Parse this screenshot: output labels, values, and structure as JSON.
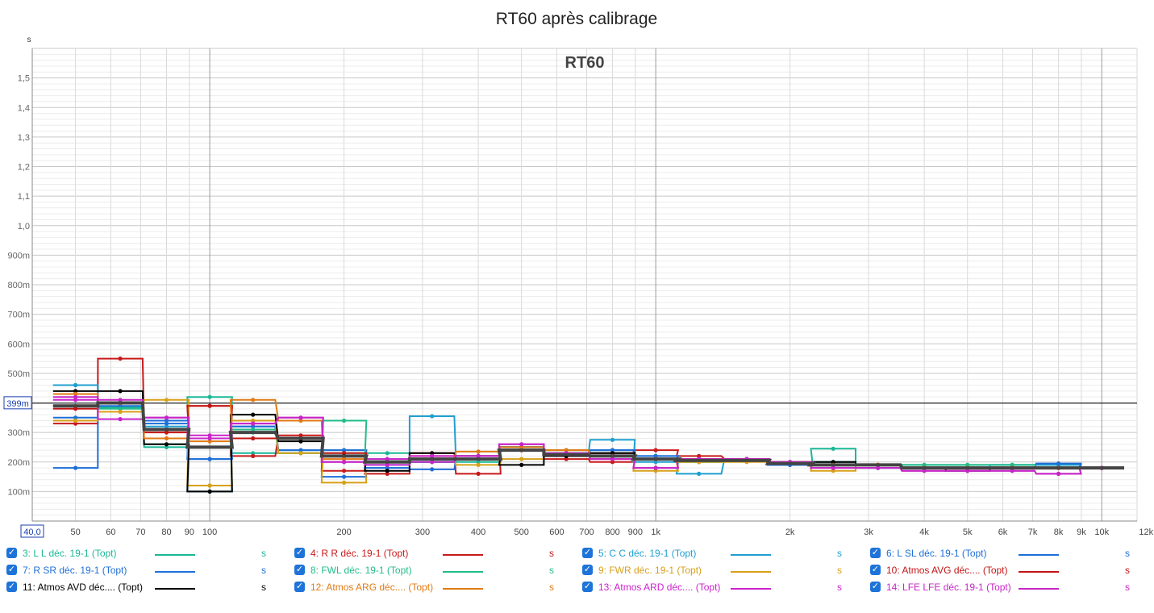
{
  "chart_data": {
    "type": "line",
    "title": "RT60 après calibrage",
    "watermark": "RT60",
    "y_unit": "s",
    "x_scale": "log",
    "xlim": [
      40,
      12000
    ],
    "ylim": [
      0,
      1.6
    ],
    "cursor": {
      "value": 0.399,
      "label": "399m"
    },
    "x_origin_label": "40,0",
    "y_ticks": [
      {
        "v": 0.1,
        "label": "100m"
      },
      {
        "v": 0.2,
        "label": "200m"
      },
      {
        "v": 0.3,
        "label": "300m"
      },
      {
        "v": 0.4,
        "label": ""
      },
      {
        "v": 0.5,
        "label": "500m"
      },
      {
        "v": 0.6,
        "label": "600m"
      },
      {
        "v": 0.7,
        "label": "700m"
      },
      {
        "v": 0.8,
        "label": "800m"
      },
      {
        "v": 0.9,
        "label": "900m"
      },
      {
        "v": 1.0,
        "label": "1,0"
      },
      {
        "v": 1.1,
        "label": "1,1"
      },
      {
        "v": 1.2,
        "label": "1,2"
      },
      {
        "v": 1.3,
        "label": "1,3"
      },
      {
        "v": 1.4,
        "label": "1,4"
      },
      {
        "v": 1.5,
        "label": "1,5"
      }
    ],
    "x_ticks": [
      {
        "v": 50,
        "label": "50"
      },
      {
        "v": 60,
        "label": "60"
      },
      {
        "v": 70,
        "label": "70"
      },
      {
        "v": 80,
        "label": "80"
      },
      {
        "v": 90,
        "label": "90"
      },
      {
        "v": 100,
        "label": "100"
      },
      {
        "v": 200,
        "label": "200"
      },
      {
        "v": 300,
        "label": "300"
      },
      {
        "v": 400,
        "label": "400"
      },
      {
        "v": 500,
        "label": "500"
      },
      {
        "v": 600,
        "label": "600"
      },
      {
        "v": 700,
        "label": "700"
      },
      {
        "v": 800,
        "label": "800"
      },
      {
        "v": 900,
        "label": "900"
      },
      {
        "v": 1000,
        "label": "1k"
      },
      {
        "v": 2000,
        "label": "2k"
      },
      {
        "v": 3000,
        "label": "3k"
      },
      {
        "v": 4000,
        "label": "4k"
      },
      {
        "v": 5000,
        "label": "5k"
      },
      {
        "v": 6000,
        "label": "6k"
      },
      {
        "v": 7000,
        "label": "7k"
      },
      {
        "v": 8000,
        "label": "8k"
      },
      {
        "v": 9000,
        "label": "9k"
      },
      {
        "v": 10000,
        "label": "10k"
      },
      {
        "v": 12000,
        "label": "12kHz"
      }
    ],
    "bands_hz": [
      50,
      63,
      80,
      100,
      125,
      160,
      200,
      250,
      315,
      400,
      500,
      630,
      800,
      1000,
      1250,
      1600,
      2000,
      2500,
      3150,
      4000,
      5000,
      6300,
      8000,
      10000
    ],
    "series": [
      {
        "name": "3: L L déc. 19-1 (Topt)",
        "color": "#1bb896",
        "width": 2,
        "values": [
          0.46,
          0.385,
          0.25,
          0.42,
          0.23,
          0.23,
          0.23,
          0.23,
          0.2,
          0.2,
          0.25,
          0.24,
          0.24,
          0.21,
          0.2,
          0.21,
          0.2,
          0.245,
          0.19,
          0.19,
          0.19,
          0.19,
          0.19,
          0.18
        ]
      },
      {
        "name": "4: R R déc. 19-1 (Topt)",
        "color": "#c81a1a",
        "width": 2,
        "values": [
          0.33,
          0.55,
          0.31,
          0.39,
          0.22,
          0.29,
          0.17,
          0.16,
          0.23,
          0.16,
          0.25,
          0.21,
          0.2,
          0.24,
          0.22,
          0.21,
          0.2,
          0.2,
          0.19,
          0.18,
          0.18,
          0.18,
          0.18,
          0.18
        ]
      },
      {
        "name": "5: C C déc. 19-1 (Topt)",
        "color": "#1f9fd0",
        "width": 2,
        "values": [
          0.46,
          0.4,
          0.32,
          0.1,
          0.3,
          0.28,
          0.24,
          0.18,
          0.355,
          0.21,
          0.25,
          0.23,
          0.275,
          0.2,
          0.16,
          0.21,
          0.19,
          0.2,
          0.19,
          0.18,
          0.18,
          0.19,
          0.19,
          0.18
        ]
      },
      {
        "name": "6: L SL déc. 19-1 (Topt)",
        "color": "#1d6ed6",
        "width": 2,
        "values": [
          0.18,
          0.4,
          0.33,
          0.21,
          0.32,
          0.24,
          0.24,
          0.19,
          0.2,
          0.22,
          0.25,
          0.22,
          0.24,
          0.22,
          0.21,
          0.21,
          0.19,
          0.19,
          0.18,
          0.18,
          0.18,
          0.18,
          0.195,
          0.18
        ]
      },
      {
        "name": "7: R SR déc. 19-1 (Topt)",
        "color": "#1f6fd8",
        "width": 2,
        "values": [
          0.35,
          0.39,
          0.34,
          0.21,
          0.32,
          0.24,
          0.15,
          0.18,
          0.175,
          0.21,
          0.25,
          0.22,
          0.24,
          0.22,
          0.21,
          0.21,
          0.19,
          0.19,
          0.18,
          0.18,
          0.18,
          0.18,
          0.18,
          0.18
        ]
      },
      {
        "name": "8: FWL déc. 19-1 (Topt)",
        "color": "#22bc8a",
        "width": 2,
        "values": [
          0.39,
          0.38,
          0.26,
          0.12,
          0.31,
          0.23,
          0.34,
          0.21,
          0.2,
          0.21,
          0.25,
          0.24,
          0.23,
          0.21,
          0.2,
          0.21,
          0.2,
          0.2,
          0.19,
          0.19,
          0.19,
          0.19,
          0.18,
          0.18
        ]
      },
      {
        "name": "9: FWR déc. 19-1 (Topt)",
        "color": "#d8a018",
        "width": 2,
        "values": [
          0.34,
          0.37,
          0.41,
          0.12,
          0.34,
          0.23,
          0.13,
          0.2,
          0.21,
          0.19,
          0.21,
          0.24,
          0.22,
          0.17,
          0.2,
          0.2,
          0.2,
          0.17,
          0.19,
          0.18,
          0.18,
          0.18,
          0.18,
          0.18
        ]
      },
      {
        "name": "10: Atmos AVG déc.... (Topt)",
        "color": "#c41414",
        "width": 2,
        "values": [
          0.38,
          0.4,
          0.3,
          0.39,
          0.28,
          0.28,
          0.23,
          0.2,
          0.22,
          0.22,
          0.24,
          0.22,
          0.23,
          0.21,
          0.21,
          0.21,
          0.2,
          0.19,
          0.19,
          0.18,
          0.18,
          0.18,
          0.18,
          0.18
        ]
      },
      {
        "name": "11: Atmos AVD déc.... (Topt)",
        "color": "#000000",
        "width": 2,
        "values": [
          0.44,
          0.44,
          0.26,
          0.1,
          0.36,
          0.27,
          0.22,
          0.17,
          0.23,
          0.22,
          0.19,
          0.22,
          0.23,
          0.21,
          0.21,
          0.21,
          0.2,
          0.2,
          0.19,
          0.18,
          0.17,
          0.18,
          0.18,
          0.18
        ]
      },
      {
        "name": "12: Atmos ARG déc.... (Topt)",
        "color": "#e07a14",
        "width": 2,
        "values": [
          0.43,
          0.4,
          0.28,
          0.27,
          0.41,
          0.34,
          0.21,
          0.2,
          0.21,
          0.235,
          0.25,
          0.24,
          0.22,
          0.21,
          0.21,
          0.21,
          0.2,
          0.19,
          0.19,
          0.18,
          0.18,
          0.18,
          0.18,
          0.18
        ]
      },
      {
        "name": "13: Atmos ARD déc.... (Topt)",
        "color": "#cc22cc",
        "width": 2,
        "values": [
          0.41,
          0.345,
          0.35,
          0.29,
          0.33,
          0.35,
          0.2,
          0.21,
          0.22,
          0.22,
          0.26,
          0.23,
          0.21,
          0.18,
          0.21,
          0.21,
          0.2,
          0.18,
          0.18,
          0.17,
          0.17,
          0.17,
          0.16,
          0.18
        ]
      },
      {
        "name": "14: LFE LFE déc. 19-1 (Topt)",
        "color": "#c626c6",
        "width": 2,
        "values": [
          0.42,
          0.41,
          0.35,
          0.28,
          0.33,
          0.35,
          0.2,
          0.19,
          0.2,
          0.22,
          0.26,
          0.23,
          0.21,
          0.18,
          0.21,
          0.21,
          0.2,
          0.18,
          0.18,
          0.17,
          0.17,
          0.17,
          0.16,
          0.18
        ]
      },
      {
        "name": "",
        "color": "#444444",
        "width": 4,
        "dots": false,
        "values": [
          0.39,
          0.4,
          0.31,
          0.25,
          0.3,
          0.28,
          0.22,
          0.2,
          0.21,
          0.21,
          0.24,
          0.225,
          0.22,
          0.21,
          0.205,
          0.205,
          0.195,
          0.19,
          0.19,
          0.18,
          0.18,
          0.18,
          0.18,
          0.18
        ]
      }
    ]
  },
  "legend": [
    {
      "label": "3: L L déc. 19-1 (Topt)",
      "unit": "s",
      "color": "#1bb896"
    },
    {
      "label": "4: R R déc. 19-1 (Topt)",
      "unit": "s",
      "color": "#c81a1a"
    },
    {
      "label": "5: C C déc. 19-1 (Topt)",
      "unit": "s",
      "color": "#1f9fd0"
    },
    {
      "label": "6: L SL déc. 19-1 (Topt)",
      "unit": "s",
      "color": "#1d6ed6"
    },
    {
      "label": "7: R SR déc. 19-1 (Topt)",
      "unit": "s",
      "color": "#1f6fd8"
    },
    {
      "label": "8: FWL déc. 19-1 (Topt)",
      "unit": "s",
      "color": "#22bc8a"
    },
    {
      "label": "9: FWR déc. 19-1 (Topt)",
      "unit": "s",
      "color": "#d8a018"
    },
    {
      "label": "10: Atmos AVG déc.... (Topt)",
      "unit": "s",
      "color": "#c41414"
    },
    {
      "label": "11: Atmos AVD déc.... (Topt)",
      "unit": "s",
      "color": "#000000"
    },
    {
      "label": "12: Atmos ARG déc.... (Topt)",
      "unit": "s",
      "color": "#e07a14"
    },
    {
      "label": "13: Atmos ARD déc.... (Topt)",
      "unit": "s",
      "color": "#cc22cc"
    },
    {
      "label": "14: LFE LFE déc. 19-1 (Topt)",
      "unit": "s",
      "color": "#c626c6"
    }
  ]
}
